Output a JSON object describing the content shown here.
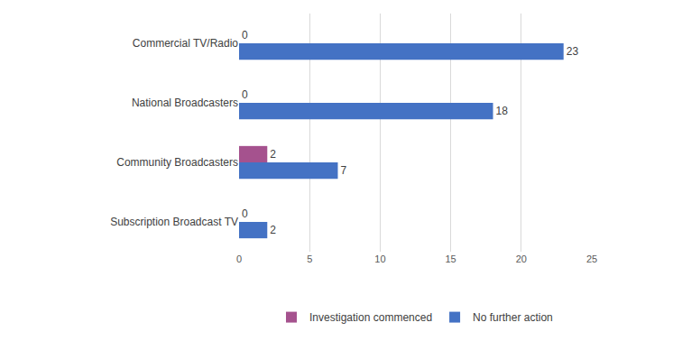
{
  "chart_data": {
    "type": "bar",
    "orientation": "horizontal",
    "categories": [
      "Commercial TV/Radio",
      "National Broadcasters",
      "Community Broadcasters",
      "Subscription Broadcast TV"
    ],
    "series": [
      {
        "name": "Investigation commenced",
        "color": "#a5528e",
        "values": [
          0,
          0,
          2,
          0
        ]
      },
      {
        "name": "No further action",
        "color": "#4472c4",
        "values": [
          23,
          18,
          7,
          2
        ]
      }
    ],
    "xlim": [
      0,
      25
    ],
    "xticks": [
      0,
      5,
      10,
      15,
      20,
      25
    ],
    "grid": true,
    "legend": "bottom",
    "data_labels": true
  }
}
